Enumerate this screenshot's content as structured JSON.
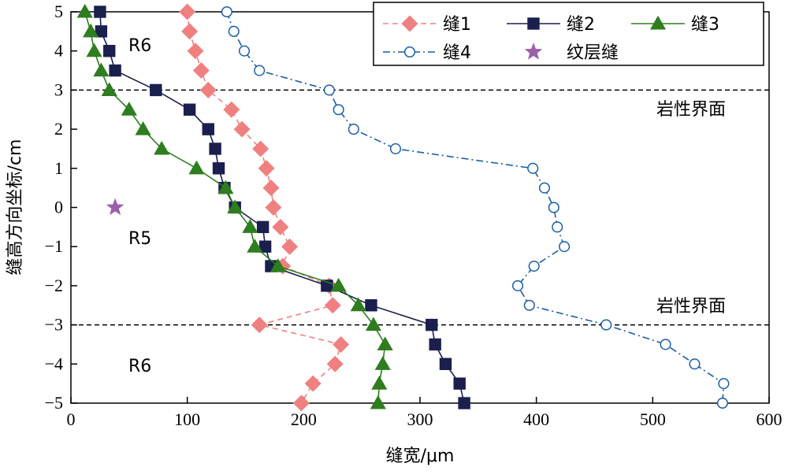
{
  "chart_data": {
    "type": "line",
    "title": "",
    "xlabel": "缝宽/μm",
    "ylabel": "缝高方向坐标/cm",
    "xlim": [
      0,
      600
    ],
    "ylim": [
      -5,
      5
    ],
    "x_ticks": [
      "0",
      "100",
      "200",
      "300",
      "400",
      "500",
      "600"
    ],
    "y_ticks": [
      "−5",
      "−4",
      "−3",
      "−2",
      "−1",
      "0",
      "1",
      "2",
      "3",
      "4",
      "5"
    ],
    "legend_position": "top-right",
    "series": [
      {
        "name": "缝1",
        "color": "#f08080",
        "marker": "diamond",
        "line": "dashed",
        "points": [
          [
            100,
            5
          ],
          [
            102,
            4.5
          ],
          [
            107,
            4
          ],
          [
            112,
            3.5
          ],
          [
            118,
            3
          ],
          [
            138,
            2.5
          ],
          [
            147,
            2
          ],
          [
            163,
            1.5
          ],
          [
            168,
            1
          ],
          [
            172,
            0.5
          ],
          [
            174,
            0
          ],
          [
            180,
            -0.5
          ],
          [
            188,
            -1
          ],
          [
            182,
            -1.5
          ],
          [
            222,
            -2
          ],
          [
            225,
            -2.5
          ],
          [
            162,
            -3
          ],
          [
            232,
            -3.5
          ],
          [
            227,
            -4
          ],
          [
            208,
            -4.5
          ],
          [
            198,
            -5
          ]
        ]
      },
      {
        "name": "缝2",
        "color": "#1a1f4e",
        "marker": "square",
        "line": "solid",
        "points": [
          [
            25,
            5
          ],
          [
            26,
            4.5
          ],
          [
            33,
            4
          ],
          [
            38,
            3.5
          ],
          [
            73,
            3
          ],
          [
            102,
            2.5
          ],
          [
            118,
            2
          ],
          [
            124,
            1.5
          ],
          [
            127,
            1
          ],
          [
            132,
            0.5
          ],
          [
            141,
            0
          ],
          [
            165,
            -0.5
          ],
          [
            167,
            -1
          ],
          [
            172,
            -1.5
          ],
          [
            220,
            -2
          ],
          [
            258,
            -2.5
          ],
          [
            310,
            -3
          ],
          [
            313,
            -3.5
          ],
          [
            322,
            -4
          ],
          [
            334,
            -4.5
          ],
          [
            338,
            -5
          ]
        ]
      },
      {
        "name": "缝3",
        "color": "#2e7d1f",
        "marker": "triangle",
        "line": "solid",
        "points": [
          [
            12,
            5
          ],
          [
            17,
            4.5
          ],
          [
            20,
            4
          ],
          [
            26,
            3.5
          ],
          [
            33,
            3
          ],
          [
            50,
            2.5
          ],
          [
            62,
            2
          ],
          [
            78,
            1.5
          ],
          [
            108,
            1
          ],
          [
            133,
            0.5
          ],
          [
            141,
            0
          ],
          [
            154,
            -0.5
          ],
          [
            158,
            -1
          ],
          [
            178,
            -1.5
          ],
          [
            230,
            -2
          ],
          [
            247,
            -2.5
          ],
          [
            260,
            -3
          ],
          [
            270,
            -3.5
          ],
          [
            268,
            -4
          ],
          [
            265,
            -4.5
          ],
          [
            264,
            -5
          ]
        ]
      },
      {
        "name": "缝4",
        "color": "#1a5da8",
        "marker": "circle-open",
        "line": "dashdot",
        "points": [
          [
            134,
            5
          ],
          [
            140,
            4.5
          ],
          [
            149,
            4
          ],
          [
            162,
            3.5
          ],
          [
            222,
            3
          ],
          [
            230,
            2.5
          ],
          [
            243,
            2
          ],
          [
            279,
            1.5
          ],
          [
            397,
            1
          ],
          [
            407,
            0.5
          ],
          [
            415,
            0
          ],
          [
            418,
            -0.5
          ],
          [
            424,
            -1
          ],
          [
            398,
            -1.5
          ],
          [
            384,
            -2
          ],
          [
            394,
            -2.5
          ],
          [
            460,
            -3
          ],
          [
            511,
            -3.5
          ],
          [
            536,
            -4
          ],
          [
            561,
            -4.5
          ],
          [
            560,
            -5
          ]
        ]
      },
      {
        "name": "纹层缝",
        "color": "#9b5fa8",
        "marker": "star",
        "line": "none",
        "points": [
          [
            38,
            0
          ]
        ]
      }
    ],
    "reference_lines": [
      {
        "y": 3,
        "label": "岩性界面"
      },
      {
        "y": -3,
        "label": "岩性界面"
      }
    ],
    "region_labels": [
      "R6",
      "R5",
      "R6"
    ]
  }
}
